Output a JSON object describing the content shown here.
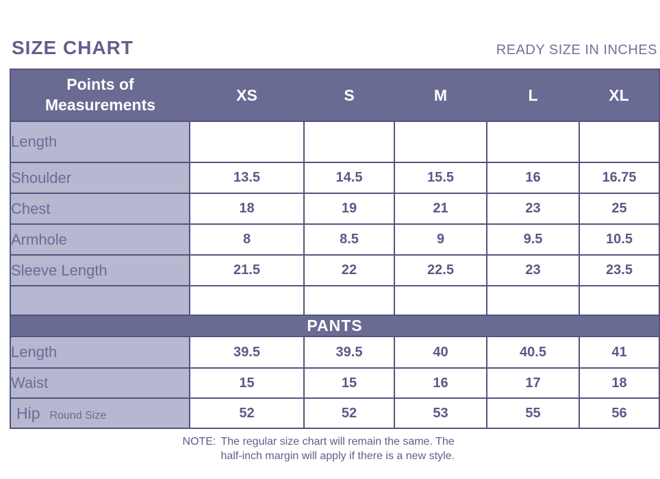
{
  "header": {
    "title": "SIZE CHART",
    "subtitle": "READY SIZE IN INCHES"
  },
  "table": {
    "corner_label": "Points of Measurements",
    "size_columns": [
      "XS",
      "S",
      "M",
      "L",
      "XL"
    ],
    "shirt_rows": [
      {
        "label": "Length",
        "values": [
          "",
          "",
          "",
          "",
          ""
        ]
      },
      {
        "label": "Shoulder",
        "values": [
          "13.5",
          "14.5",
          "15.5",
          "16",
          "16.75"
        ]
      },
      {
        "label": "Chest",
        "values": [
          "18",
          "19",
          "21",
          "23",
          "25"
        ]
      },
      {
        "label": "Armhole",
        "values": [
          "8",
          "8.5",
          "9",
          "9.5",
          "10.5"
        ]
      },
      {
        "label": "Sleeve Length",
        "values": [
          "21.5",
          "22",
          "22.5",
          "23",
          "23.5"
        ]
      },
      {
        "label": "",
        "values": [
          "",
          "",
          "",
          "",
          ""
        ]
      }
    ],
    "section_header": "PANTS",
    "pants_rows": [
      {
        "label": "Length",
        "values": [
          "39.5",
          "39.5",
          "40",
          "40.5",
          "41"
        ]
      },
      {
        "label": "Waist",
        "values": [
          "15",
          "15",
          "16",
          "17",
          "18"
        ]
      },
      {
        "label": "Hip",
        "sublabel": "Round Size",
        "values": [
          "52",
          "52",
          "53",
          "55",
          "56"
        ]
      }
    ]
  },
  "note": {
    "prefix": "NOTE:",
    "text": "The regular size chart will remain the same. The half-inch margin will apply if there is a new style."
  },
  "colors": {
    "header_bg": "#696b93",
    "label_bg": "#b6b7d0",
    "border": "#55537e",
    "title_text": "#615f8c",
    "cell_text": "#5b5887",
    "label_text": "#6d6a96"
  }
}
